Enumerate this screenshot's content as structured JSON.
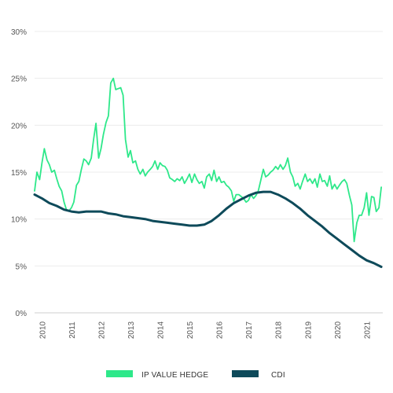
{
  "chart_data": {
    "type": "line",
    "title": "",
    "xlabel": "",
    "ylabel": "",
    "ylim": [
      0,
      30
    ],
    "xlim": [
      2009.75,
      2021.55
    ],
    "y_ticks": [
      "0%",
      "5%",
      "10%",
      "15%",
      "20%",
      "25%",
      "30%"
    ],
    "x_ticks": [
      "2010",
      "2011",
      "2012",
      "2013",
      "2014",
      "2015",
      "2016",
      "2017",
      "2018",
      "2019",
      "2020",
      "2021"
    ],
    "grid": {
      "horizontal": true,
      "vertical": false
    },
    "legend_position": "bottom",
    "series": [
      {
        "name": "IP VALUE HEDGE",
        "color": "#2ee88a",
        "x": [
          2009.75,
          2009.83,
          2009.92,
          2010.0,
          2010.08,
          2010.17,
          2010.25,
          2010.33,
          2010.42,
          2010.5,
          2010.58,
          2010.67,
          2010.75,
          2010.83,
          2010.92,
          2011.0,
          2011.08,
          2011.17,
          2011.25,
          2011.33,
          2011.42,
          2011.5,
          2011.58,
          2011.67,
          2011.75,
          2011.83,
          2011.92,
          2012.0,
          2012.08,
          2012.17,
          2012.25,
          2012.33,
          2012.42,
          2012.5,
          2012.58,
          2012.67,
          2012.75,
          2012.83,
          2012.92,
          2013.0,
          2013.08,
          2013.17,
          2013.25,
          2013.33,
          2013.42,
          2013.5,
          2013.58,
          2013.67,
          2013.75,
          2013.83,
          2013.92,
          2014.0,
          2014.08,
          2014.17,
          2014.25,
          2014.33,
          2014.42,
          2014.5,
          2014.58,
          2014.67,
          2014.75,
          2014.83,
          2014.92,
          2015.0,
          2015.08,
          2015.17,
          2015.25,
          2015.33,
          2015.42,
          2015.5,
          2015.58,
          2015.67,
          2015.75,
          2015.83,
          2015.92,
          2016.0,
          2016.08,
          2016.17,
          2016.25,
          2016.33,
          2016.42,
          2016.5,
          2016.58,
          2016.67,
          2016.75,
          2016.83,
          2016.92,
          2017.0,
          2017.08,
          2017.17,
          2017.25,
          2017.33,
          2017.42,
          2017.5,
          2017.58,
          2017.67,
          2017.75,
          2017.83,
          2017.92,
          2018.0,
          2018.08,
          2018.17,
          2018.25,
          2018.33,
          2018.42,
          2018.5,
          2018.58,
          2018.67,
          2018.75,
          2018.83,
          2018.92,
          2019.0,
          2019.08,
          2019.17,
          2019.25,
          2019.33,
          2019.42,
          2019.5,
          2019.58,
          2019.67,
          2019.75,
          2019.83,
          2019.92,
          2020.0,
          2020.08,
          2020.17,
          2020.25,
          2020.33,
          2020.42,
          2020.5,
          2020.58,
          2020.67,
          2020.75,
          2020.83,
          2020.92,
          2021.0,
          2021.08,
          2021.17,
          2021.25,
          2021.33,
          2021.42,
          2021.5
        ],
        "values": [
          13.0,
          15.0,
          14.2,
          16.0,
          17.5,
          16.3,
          15.8,
          15.0,
          15.2,
          14.3,
          13.5,
          13.0,
          11.8,
          11.0,
          10.9,
          11.2,
          11.8,
          13.6,
          14.0,
          15.2,
          16.4,
          16.2,
          15.8,
          16.5,
          18.5,
          20.2,
          16.5,
          17.5,
          19.0,
          20.3,
          21.0,
          24.5,
          25.0,
          23.8,
          23.9,
          24.0,
          23.2,
          18.5,
          16.6,
          17.3,
          16.0,
          16.2,
          15.3,
          14.8,
          15.3,
          14.6,
          15.0,
          15.3,
          15.6,
          16.2,
          15.3,
          16.0,
          15.7,
          15.6,
          15.2,
          14.4,
          14.2,
          14.0,
          14.3,
          14.1,
          14.5,
          13.8,
          14.3,
          14.8,
          13.9,
          14.8,
          14.2,
          13.8,
          14.0,
          13.3,
          14.5,
          14.8,
          14.1,
          15.2,
          14.0,
          14.5,
          13.9,
          14.0,
          13.6,
          13.4,
          13.0,
          11.9,
          12.6,
          12.6,
          12.4,
          12.2,
          11.8,
          12.0,
          12.6,
          12.2,
          12.5,
          13.0,
          14.2,
          15.3,
          14.5,
          14.7,
          15.0,
          15.2,
          15.6,
          15.3,
          15.8,
          15.3,
          15.7,
          16.5,
          15.0,
          14.5,
          13.5,
          13.8,
          13.2,
          14.0,
          14.8,
          14.0,
          14.3,
          13.8,
          14.3,
          13.4,
          14.8,
          14.0,
          14.1,
          13.5,
          14.6,
          13.2,
          13.7,
          13.2,
          13.6,
          14.0,
          14.2,
          13.8,
          12.5,
          11.5,
          7.6,
          9.6,
          10.4,
          10.4,
          11.2,
          12.8,
          10.4,
          12.4,
          12.3,
          10.8,
          11.2,
          13.4
        ]
      },
      {
        "name": "CDI",
        "color": "#0e4a5a",
        "x": [
          2009.75,
          2010.0,
          2010.25,
          2010.5,
          2010.75,
          2011.0,
          2011.25,
          2011.5,
          2011.75,
          2012.0,
          2012.25,
          2012.5,
          2012.75,
          2013.0,
          2013.25,
          2013.5,
          2013.75,
          2014.0,
          2014.25,
          2014.5,
          2014.75,
          2015.0,
          2015.25,
          2015.5,
          2015.75,
          2016.0,
          2016.25,
          2016.5,
          2016.75,
          2017.0,
          2017.25,
          2017.5,
          2017.75,
          2018.0,
          2018.25,
          2018.5,
          2018.75,
          2019.0,
          2019.25,
          2019.5,
          2019.75,
          2020.0,
          2020.25,
          2020.5,
          2020.75,
          2021.0,
          2021.25,
          2021.5
        ],
        "values": [
          12.6,
          12.2,
          11.7,
          11.4,
          11.0,
          10.8,
          10.7,
          10.8,
          10.8,
          10.8,
          10.6,
          10.5,
          10.3,
          10.2,
          10.1,
          10.0,
          9.8,
          9.7,
          9.6,
          9.5,
          9.4,
          9.3,
          9.3,
          9.4,
          9.8,
          10.4,
          11.1,
          11.7,
          12.1,
          12.5,
          12.8,
          12.9,
          12.9,
          12.6,
          12.2,
          11.7,
          11.1,
          10.4,
          9.8,
          9.2,
          8.5,
          7.9,
          7.3,
          6.7,
          6.1,
          5.6,
          5.3,
          4.9
        ]
      }
    ]
  }
}
